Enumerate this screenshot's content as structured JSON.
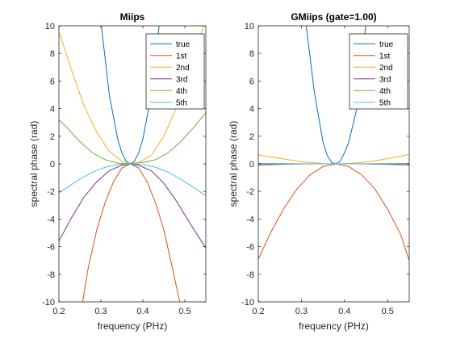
{
  "figure": {
    "background": "#ffffff"
  },
  "chart_data": [
    {
      "type": "line",
      "title": "Miips",
      "xlabel": "frequency (PHz)",
      "ylabel": "spectral phase (rad)",
      "xlim": [
        0.2,
        0.55
      ],
      "ylim": [
        -10,
        10
      ],
      "xticks": [
        0.2,
        0.3,
        0.4,
        0.5
      ],
      "xtick_labels": [
        "0.2",
        "0.3",
        "0.4",
        "0.5"
      ],
      "yticks": [
        -10,
        -8,
        -6,
        -4,
        -2,
        0,
        2,
        4,
        6,
        8,
        10
      ],
      "ytick_labels": [
        "-10",
        "-8",
        "-6",
        "-4",
        "-2",
        "0",
        "2",
        "4",
        "6",
        "8",
        "10"
      ],
      "grid": false,
      "legend_position": "top-right",
      "series": [
        {
          "name": "true",
          "color": "#0072BD",
          "x": [
            0.3,
            0.32,
            0.34,
            0.35,
            0.36,
            0.37,
            0.38,
            0.39,
            0.4,
            0.42,
            0.44
          ],
          "y": [
            10.3,
            5.0,
            1.8,
            0.8,
            0.2,
            0.0,
            0.2,
            0.8,
            1.8,
            5.0,
            10.3
          ]
        },
        {
          "name": "1st",
          "color": "#D95319",
          "x": [
            0.255,
            0.27,
            0.29,
            0.31,
            0.33,
            0.35,
            0.37,
            0.39,
            0.41,
            0.43,
            0.45,
            0.47,
            0.49
          ],
          "y": [
            -10.3,
            -7.5,
            -4.8,
            -2.8,
            -1.3,
            -0.3,
            0.0,
            -0.3,
            -1.3,
            -2.8,
            -4.8,
            -7.5,
            -10.3
          ]
        },
        {
          "name": "2nd",
          "color": "#EDB120",
          "x": [
            0.2,
            0.23,
            0.26,
            0.29,
            0.32,
            0.35,
            0.37,
            0.39,
            0.42,
            0.45,
            0.48,
            0.51,
            0.54,
            0.55
          ],
          "y": [
            9.6,
            6.8,
            4.2,
            2.3,
            0.9,
            0.2,
            0.0,
            0.1,
            0.6,
            2.0,
            4.1,
            6.7,
            9.6,
            10.4
          ]
        },
        {
          "name": "3rd",
          "color": "#7E2F8E",
          "x": [
            0.2,
            0.23,
            0.26,
            0.29,
            0.32,
            0.35,
            0.37,
            0.39,
            0.42,
            0.45,
            0.48,
            0.51,
            0.55
          ],
          "y": [
            -5.6,
            -3.9,
            -2.4,
            -1.3,
            -0.5,
            -0.1,
            0.0,
            -0.1,
            -0.5,
            -1.4,
            -2.7,
            -4.2,
            -6.1
          ]
        },
        {
          "name": "4th",
          "color": "#77AC30",
          "x": [
            0.2,
            0.22,
            0.25,
            0.28,
            0.31,
            0.34,
            0.37,
            0.4,
            0.43,
            0.46,
            0.49,
            0.52,
            0.55
          ],
          "y": [
            3.2,
            2.6,
            1.6,
            0.8,
            0.3,
            0.05,
            0.0,
            0.1,
            0.3,
            0.8,
            1.6,
            2.6,
            3.7
          ]
        },
        {
          "name": "5th",
          "color": "#4DBEEE",
          "x": [
            0.2,
            0.22,
            0.25,
            0.28,
            0.31,
            0.34,
            0.37,
            0.4,
            0.43,
            0.46,
            0.49,
            0.52,
            0.55
          ],
          "y": [
            -2.1,
            -1.7,
            -1.1,
            -0.6,
            -0.25,
            -0.05,
            0.0,
            -0.05,
            -0.25,
            -0.6,
            -1.1,
            -1.7,
            -2.3
          ]
        }
      ]
    },
    {
      "type": "line",
      "title": "GMiips (gate=1.00)",
      "xlabel": "frequency (PHz)",
      "ylabel": "spectral phase (rad)",
      "xlim": [
        0.2,
        0.55
      ],
      "ylim": [
        -10,
        10
      ],
      "xticks": [
        0.2,
        0.3,
        0.4,
        0.5
      ],
      "xtick_labels": [
        "0.2",
        "0.3",
        "0.4",
        "0.5"
      ],
      "yticks": [
        -10,
        -8,
        -6,
        -4,
        -2,
        0,
        2,
        4,
        6,
        8,
        10
      ],
      "ytick_labels": [
        "-10",
        "-8",
        "-6",
        "-4",
        "-2",
        "0",
        "2",
        "4",
        "6",
        "8",
        "10"
      ],
      "grid": false,
      "legend_position": "top-right",
      "series": [
        {
          "name": "true",
          "color": "#0072BD",
          "x": [
            0.31,
            0.33,
            0.35,
            0.36,
            0.37,
            0.38,
            0.39,
            0.4,
            0.41,
            0.43,
            0.45
          ],
          "y": [
            10.3,
            5.2,
            1.6,
            0.6,
            0.1,
            0.0,
            0.2,
            0.8,
            1.6,
            4.2,
            10.3
          ]
        },
        {
          "name": "1st",
          "color": "#D95319",
          "x": [
            0.2,
            0.23,
            0.26,
            0.29,
            0.32,
            0.35,
            0.38,
            0.41,
            0.44,
            0.47,
            0.5,
            0.53,
            0.55
          ],
          "y": [
            -6.9,
            -4.9,
            -3.2,
            -1.8,
            -0.8,
            -0.2,
            0.0,
            -0.2,
            -0.8,
            -1.8,
            -3.3,
            -5.1,
            -7.0
          ]
        },
        {
          "name": "2nd",
          "color": "#EDB120",
          "x": [
            0.2,
            0.23,
            0.26,
            0.29,
            0.32,
            0.35,
            0.38,
            0.41,
            0.44,
            0.47,
            0.5,
            0.53,
            0.55
          ],
          "y": [
            0.65,
            0.5,
            0.35,
            0.2,
            0.1,
            0.02,
            0.0,
            0.03,
            0.1,
            0.22,
            0.38,
            0.55,
            0.7
          ]
        },
        {
          "name": "3rd",
          "color": "#7E2F8E",
          "x": [
            0.2,
            0.25,
            0.3,
            0.35,
            0.38,
            0.41,
            0.45,
            0.5,
            0.55
          ],
          "y": [
            -0.08,
            -0.04,
            -0.01,
            0.0,
            0.0,
            0.0,
            -0.01,
            -0.04,
            -0.08
          ]
        },
        {
          "name": "4th",
          "color": "#77AC30",
          "x": [
            0.2,
            0.25,
            0.3,
            0.35,
            0.38,
            0.41,
            0.45,
            0.5,
            0.55
          ],
          "y": [
            0.03,
            0.02,
            0.01,
            0.0,
            0.0,
            0.0,
            0.01,
            0.02,
            0.03
          ]
        },
        {
          "name": "5th",
          "color": "#4DBEEE",
          "x": [
            0.2,
            0.25,
            0.3,
            0.35,
            0.38,
            0.41,
            0.45,
            0.5,
            0.55
          ],
          "y": [
            -0.01,
            -0.005,
            0.0,
            0.0,
            0.0,
            0.0,
            0.0,
            -0.005,
            -0.01
          ]
        }
      ]
    }
  ]
}
